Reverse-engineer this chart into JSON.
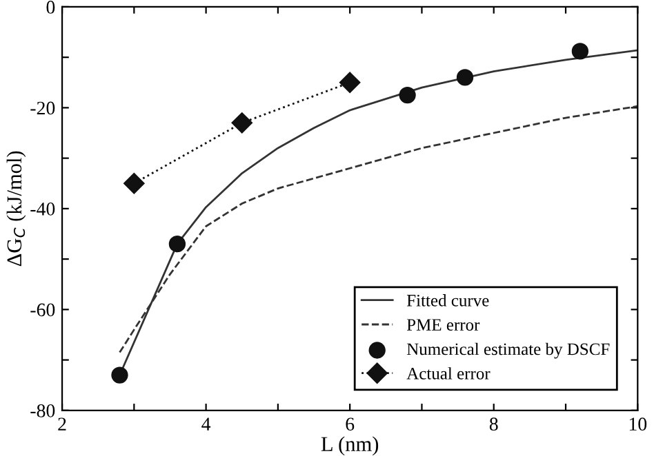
{
  "chart_data": {
    "type": "line",
    "xlabel": "L (nm)",
    "ylabel": "ΔG$_{C}$ (kJ/mol)",
    "xlim": [
      2,
      10
    ],
    "ylim": [
      -80,
      0
    ],
    "xticks": [
      2,
      {
        "value": 3,
        "label": null
      },
      4,
      {
        "value": 5,
        "label": null
      },
      6,
      {
        "value": 7,
        "label": null
      },
      8,
      {
        "value": 9,
        "label": null
      },
      10
    ],
    "yticks": [
      -80,
      {
        "value": -70,
        "label": null
      },
      -60,
      {
        "value": -50,
        "label": null
      },
      -40,
      {
        "value": -30,
        "label": null
      },
      -20,
      {
        "value": -10,
        "label": null
      },
      0
    ],
    "grid": false,
    "legend": "bottom right",
    "series": [
      {
        "name": "Fitted curve",
        "color": "#333333",
        "line_style": "solid",
        "marker": "none",
        "x": [
          2.8,
          3.2,
          3.6,
          4,
          4.5,
          5,
          5.5,
          6,
          7,
          8,
          9,
          10
        ],
        "values": [
          -73,
          -60,
          -47,
          -39.7,
          -33,
          -28,
          -24,
          -20.5,
          -16,
          -12.8,
          -10.5,
          -8.6
        ]
      },
      {
        "name": "PME error",
        "color": "#333333",
        "line_style": "dashed",
        "marker": "none",
        "x": [
          2.8,
          3,
          3.5,
          4,
          4.5,
          5,
          6,
          7,
          8,
          9,
          10
        ],
        "values": [
          -68.5,
          -64,
          -53,
          -43.5,
          -39,
          -36,
          -32,
          -28,
          -25,
          -22,
          -19.7
        ]
      },
      {
        "name": "Numerical estimate by DSCF",
        "type": "scatter",
        "color": "#111111",
        "marker": "circle",
        "x": [
          2.8,
          3.6,
          6.8,
          7.6,
          9.2
        ],
        "values": [
          -73,
          -47,
          -17.5,
          -14,
          -8.8
        ]
      },
      {
        "name": "Actual error",
        "color": "#111111",
        "line_style": "dotted",
        "marker": "diamond",
        "x": [
          3,
          4.5,
          6
        ],
        "values": [
          -35,
          -23,
          -15
        ]
      }
    ]
  }
}
